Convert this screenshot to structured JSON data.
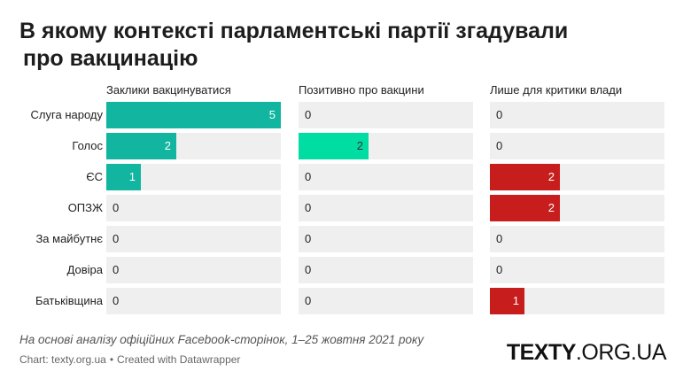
{
  "title": {
    "line1": "В якому контексті парламентські партії згадували",
    "line2": "про вакцинацію"
  },
  "chart_data": {
    "type": "bar",
    "categories": [
      "Слуга народу",
      "Голос",
      "ЄС",
      "ОПЗЖ",
      "За майбутнє",
      "Довіра",
      "Батьківщина"
    ],
    "xlim": [
      0,
      5
    ],
    "series": [
      {
        "name": "Заклики вакцинуватися",
        "values": [
          5,
          2,
          1,
          0,
          0,
          0,
          0
        ],
        "labels": [
          "5",
          "2",
          "1",
          "0",
          "0",
          "0",
          "0"
        ],
        "colors": [
          "#12b6a0",
          "#12b6a0",
          "#12b6a0",
          "#12b6a0",
          "#12b6a0",
          "#12b6a0",
          "#12b6a0"
        ]
      },
      {
        "name": "Позитивно про вакцини",
        "values": [
          0,
          2,
          0,
          0,
          0,
          0,
          0
        ],
        "labels": [
          "0",
          "2",
          "0",
          "0",
          "0",
          "0",
          "0"
        ],
        "colors": [
          "#00dda2",
          "#00dda2",
          "#00dda2",
          "#00dda2",
          "#00dda2",
          "#00dda2",
          "#00dda2"
        ]
      },
      {
        "name": "Лише для критики влади",
        "values": [
          0,
          0,
          2,
          2,
          0,
          0,
          1
        ],
        "labels": [
          "0",
          "0",
          "2",
          "2",
          "0",
          "0",
          "1"
        ],
        "colors": [
          "#c71e1d",
          "#c71e1d",
          "#c71e1d",
          "#c71e1d",
          "#c71e1d",
          "#c71e1d",
          "#c71e1d"
        ]
      }
    ]
  },
  "footer": {
    "note": "На основі аналізу офіційних Facebook-сторінок, 1–25 жовтня 2021 року",
    "chart_source": "Chart: texty.org.ua",
    "separator": "•",
    "created_with": "Created with Datawrapper",
    "logo_bold": "TEXTY",
    "logo_rest": ".ORG.UA"
  },
  "colors": {
    "track": "#efefef",
    "value_on_bar": "#ffffff",
    "value_on_light_bar": "#333333",
    "value_off_bar": "#222222"
  }
}
